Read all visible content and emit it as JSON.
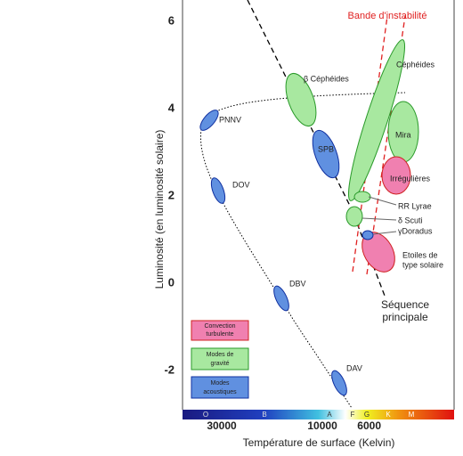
{
  "y_axis": {
    "label": "Luminosité (en luminosité solaire)",
    "ticks": [
      6,
      4,
      2,
      0,
      -2
    ]
  },
  "x_axis": {
    "label": "Température de surface (Kelvin)",
    "ticks": [
      30000,
      10000,
      6000
    ]
  },
  "spectral_classes": [
    "O",
    "B",
    "A",
    "F",
    "G",
    "K",
    "M"
  ],
  "regions": {
    "instability_strip": "Bande d'instabilité",
    "cepheids": "Céphéides",
    "beta_cepheids": "β Céphéides",
    "pnnv": "PNNV",
    "spb": "SPB",
    "mira": "Mira",
    "irregulars": "Irrégulières",
    "dov": "DOV",
    "rr_lyrae": "RR Lyrae",
    "delta_scuti": "δ Scuti",
    "gamma_doradus": "γDoradus",
    "solar_like": [
      "Etoiles de",
      "type solaire"
    ],
    "main_sequence": [
      "Séquence",
      "principale"
    ],
    "dbv": "DBV",
    "dav": "DAV"
  },
  "legend": [
    {
      "label": [
        "Convection",
        "turbulente"
      ]
    },
    {
      "label": [
        "Modes de",
        "gravité"
      ]
    },
    {
      "label": [
        "Modes",
        "acoustiques"
      ]
    }
  ]
}
